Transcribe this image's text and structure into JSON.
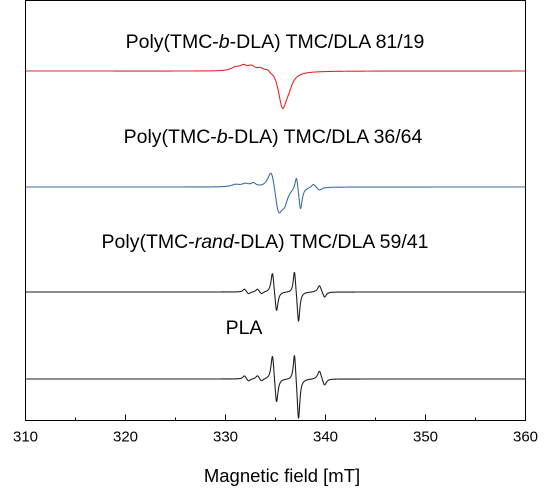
{
  "chart_data": {
    "type": "line",
    "title": "",
    "xlabel": "Magnetic field [mT]",
    "ylabel": "",
    "xlim": [
      310,
      360
    ],
    "x_ticks": [
      310,
      320,
      330,
      340,
      350,
      360
    ],
    "y_ticks": [],
    "grid": false,
    "legend": "none",
    "series": [
      {
        "key": "s1",
        "label_parts": [
          {
            "text": "Poly(TMC-",
            "italic": false
          },
          {
            "text": "b",
            "italic": true
          },
          {
            "text": "-DLA) TMC/DLA 81/19",
            "italic": false
          }
        ],
        "color": "#e8262a",
        "offset": 3,
        "peaks": [
          [
            331.0,
            0.1,
            0.55
          ],
          [
            331.8,
            0.14,
            0.45
          ],
          [
            332.6,
            0.14,
            0.45
          ],
          [
            333.5,
            0.1,
            0.4
          ],
          [
            334.2,
            0.09,
            0.35
          ],
          [
            334.9,
            0.08,
            0.35
          ],
          [
            335.7,
            -1.0,
            0.5
          ],
          [
            336.3,
            -0.3,
            0.5
          ]
        ]
      },
      {
        "key": "s2",
        "label_parts": [
          {
            "text": "Poly(TMC-",
            "italic": false
          },
          {
            "text": "b",
            "italic": true
          },
          {
            "text": "-DLA) TMC/DLA 36/64",
            "italic": false
          }
        ],
        "color": "#3b6fa5",
        "offset": 2,
        "peaks": [
          [
            331.0,
            0.06,
            0.5
          ],
          [
            332.0,
            0.08,
            0.45
          ],
          [
            332.8,
            0.09,
            0.3
          ],
          [
            334.6,
            0.58,
            0.45
          ],
          [
            335.3,
            -0.72,
            0.45
          ],
          [
            335.9,
            -0.35,
            0.4
          ],
          [
            337.1,
            0.4,
            0.18
          ],
          [
            337.5,
            -0.6,
            0.2
          ],
          [
            338.8,
            0.1,
            0.25
          ],
          [
            339.4,
            -0.08,
            0.3
          ]
        ]
      },
      {
        "key": "s3",
        "label_parts": [
          {
            "text": "Poly(TMC-",
            "italic": false
          },
          {
            "text": "rand",
            "italic": true
          },
          {
            "text": "-DLA) TMC/DLA 59/41",
            "italic": false
          }
        ],
        "color": "#1f1f1f",
        "offset": 1,
        "peaks": [
          [
            331.9,
            0.08,
            0.2
          ],
          [
            332.3,
            -0.06,
            0.2
          ],
          [
            333.2,
            0.08,
            0.2
          ],
          [
            333.6,
            -0.06,
            0.2
          ],
          [
            334.7,
            0.55,
            0.18
          ],
          [
            335.1,
            -0.55,
            0.18
          ],
          [
            336.9,
            0.6,
            0.15
          ],
          [
            337.3,
            -0.8,
            0.16
          ],
          [
            339.4,
            0.18,
            0.22
          ],
          [
            339.9,
            -0.15,
            0.22
          ]
        ]
      },
      {
        "key": "s4",
        "label_parts": [
          {
            "text": "PLA",
            "italic": false
          }
        ],
        "color": "#1f1f1f",
        "offset": 0,
        "peaks": [
          [
            331.9,
            0.08,
            0.2
          ],
          [
            332.3,
            -0.06,
            0.2
          ],
          [
            333.2,
            0.08,
            0.2
          ],
          [
            333.6,
            -0.06,
            0.2
          ],
          [
            334.7,
            0.6,
            0.18
          ],
          [
            335.1,
            -0.6,
            0.18
          ],
          [
            336.9,
            0.65,
            0.15
          ],
          [
            337.3,
            -0.95,
            0.16
          ],
          [
            339.4,
            0.2,
            0.22
          ],
          [
            339.9,
            -0.16,
            0.22
          ]
        ]
      }
    ]
  }
}
